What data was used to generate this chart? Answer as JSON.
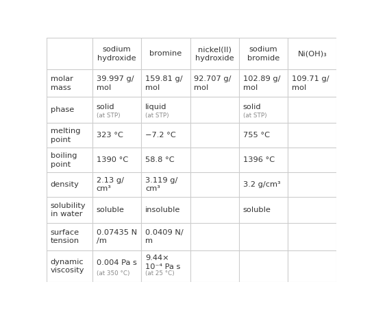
{
  "col_headers": [
    "",
    "sodium\nhydroxide",
    "bromine",
    "nickel(II)\nhydroxide",
    "sodium\nbromide",
    "Ni(OH)₃"
  ],
  "rows": [
    {
      "label": "molar\nmass",
      "values": [
        "39.997 g/\nmol",
        "159.81 g/\nmol",
        "92.707 g/\nmol",
        "102.89 g/\nmol",
        "109.71 g/\nmol"
      ]
    },
    {
      "label": "phase",
      "values": [
        "solid|(at STP)",
        "liquid|(at STP)",
        "",
        "solid|(at STP)",
        ""
      ]
    },
    {
      "label": "melting\npoint",
      "values": [
        "323 °C",
        "−7.2 °C",
        "",
        "755 °C",
        ""
      ]
    },
    {
      "label": "boiling\npoint",
      "values": [
        "1390 °C",
        "58.8 °C",
        "",
        "1396 °C",
        ""
      ]
    },
    {
      "label": "density",
      "values": [
        "2.13 g/\ncm³",
        "3.119 g/\ncm³",
        "",
        "3.2 g/cm³",
        ""
      ]
    },
    {
      "label": "solubility\nin water",
      "values": [
        "soluble",
        "insoluble",
        "",
        "soluble",
        ""
      ]
    },
    {
      "label": "surface\ntension",
      "values": [
        "0.07435 N\n/m",
        "0.0409 N/\nm",
        "",
        "",
        ""
      ]
    },
    {
      "label": "dynamic\nviscosity",
      "values": [
        "0.004 Pa s|(at 350 °C)",
        "9.44×\n10⁻⁴ Pa s|(at 25 °C)",
        "",
        "",
        ""
      ]
    }
  ],
  "background_color": "#ffffff",
  "line_color": "#cccccc",
  "text_color": "#333333",
  "header_text_color": "#333333",
  "small_text_color": "#888888"
}
